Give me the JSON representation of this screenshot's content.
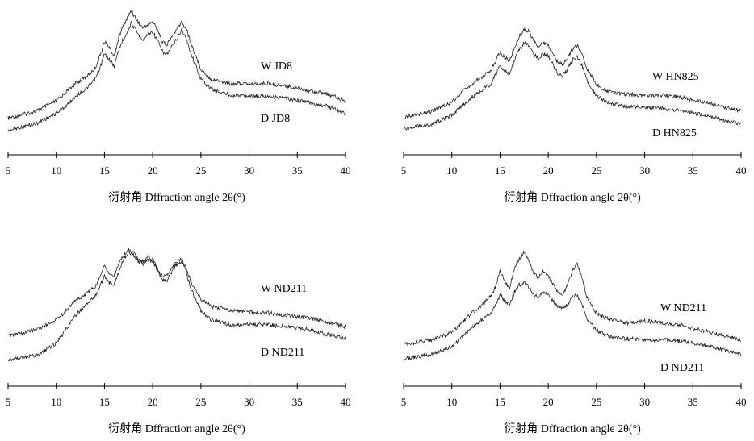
{
  "chart_data": [
    {
      "type": "line",
      "panel": "top-left",
      "xlabel": "衍射角 Dffraction angle 2θ(°)",
      "ylabel": "",
      "xlim": [
        5,
        40
      ],
      "x_ticks": [
        "5",
        "10",
        "15",
        "20",
        "25",
        "30",
        "35",
        "40"
      ],
      "grid": false,
      "series": [
        {
          "name": "W JD8",
          "x": [
            5,
            8,
            10,
            11,
            12,
            13,
            14,
            14.5,
            15,
            15.5,
            16,
            16.5,
            17,
            17.5,
            17.8,
            18,
            18.5,
            19,
            19.5,
            20,
            20.5,
            21,
            21.5,
            22,
            22.5,
            23,
            23.5,
            24,
            25,
            26,
            27,
            28,
            30,
            32,
            34,
            36,
            38,
            40
          ],
          "y": [
            0.12,
            0.18,
            0.26,
            0.33,
            0.4,
            0.45,
            0.52,
            0.62,
            0.74,
            0.7,
            0.62,
            0.78,
            0.88,
            0.95,
            1.0,
            0.96,
            0.9,
            0.85,
            0.88,
            0.9,
            0.84,
            0.74,
            0.72,
            0.78,
            0.84,
            0.9,
            0.84,
            0.72,
            0.52,
            0.44,
            0.42,
            0.4,
            0.4,
            0.4,
            0.38,
            0.35,
            0.32,
            0.26
          ]
        },
        {
          "name": "D JD8",
          "x": [
            5,
            8,
            10,
            11,
            12,
            13,
            14,
            14.5,
            15,
            15.5,
            16,
            16.5,
            17,
            17.5,
            17.8,
            18,
            18.5,
            19,
            19.5,
            20,
            20.5,
            21,
            21.5,
            22,
            22.5,
            23,
            23.5,
            24,
            25,
            26,
            27,
            28,
            30,
            32,
            34,
            36,
            38,
            40
          ],
          "y": [
            0.02,
            0.08,
            0.16,
            0.22,
            0.3,
            0.35,
            0.43,
            0.52,
            0.64,
            0.6,
            0.54,
            0.68,
            0.77,
            0.84,
            0.9,
            0.86,
            0.8,
            0.76,
            0.8,
            0.82,
            0.75,
            0.66,
            0.64,
            0.7,
            0.76,
            0.84,
            0.76,
            0.64,
            0.44,
            0.36,
            0.33,
            0.31,
            0.3,
            0.3,
            0.28,
            0.25,
            0.22,
            0.16
          ]
        }
      ]
    },
    {
      "type": "line",
      "panel": "top-right",
      "xlabel": "衍射角 Dffraction angle 2θ(°)",
      "ylabel": "",
      "xlim": [
        5,
        40
      ],
      "x_ticks": [
        "5",
        "10",
        "15",
        "20",
        "25",
        "30",
        "35",
        "40"
      ],
      "grid": false,
      "series": [
        {
          "name": "W HN825",
          "x": [
            5,
            8,
            10,
            11,
            12,
            13,
            14,
            14.5,
            15,
            15.5,
            16,
            16.5,
            17,
            17.5,
            18,
            18.5,
            19,
            19.5,
            20,
            20.5,
            21,
            21.5,
            22,
            22.5,
            23,
            23.5,
            24,
            25,
            26,
            27,
            28,
            30,
            32,
            34,
            36,
            38,
            40
          ],
          "y": [
            0.18,
            0.24,
            0.32,
            0.4,
            0.48,
            0.54,
            0.6,
            0.68,
            0.78,
            0.72,
            0.7,
            0.82,
            0.92,
            0.98,
            0.96,
            0.88,
            0.82,
            0.86,
            0.84,
            0.76,
            0.68,
            0.66,
            0.72,
            0.8,
            0.84,
            0.76,
            0.62,
            0.48,
            0.42,
            0.4,
            0.39,
            0.38,
            0.38,
            0.36,
            0.32,
            0.28,
            0.24
          ]
        },
        {
          "name": "D HN825",
          "x": [
            5,
            8,
            10,
            11,
            12,
            13,
            14,
            14.5,
            15,
            15.5,
            16,
            16.5,
            17,
            17.5,
            18,
            18.5,
            19,
            19.5,
            20,
            20.5,
            21,
            21.5,
            22,
            22.5,
            23,
            23.5,
            24,
            25,
            26,
            27,
            28,
            30,
            32,
            34,
            36,
            38,
            40
          ],
          "y": [
            0.08,
            0.12,
            0.2,
            0.28,
            0.36,
            0.42,
            0.48,
            0.56,
            0.66,
            0.6,
            0.58,
            0.7,
            0.8,
            0.86,
            0.84,
            0.76,
            0.72,
            0.76,
            0.74,
            0.66,
            0.58,
            0.56,
            0.62,
            0.7,
            0.74,
            0.66,
            0.52,
            0.38,
            0.32,
            0.3,
            0.28,
            0.27,
            0.26,
            0.24,
            0.2,
            0.16,
            0.12
          ]
        }
      ]
    },
    {
      "type": "line",
      "panel": "bottom-left",
      "xlabel": "衍射角 Dffraction angle 2θ(°)",
      "ylabel": "",
      "xlim": [
        5,
        40
      ],
      "x_ticks": [
        "5",
        "10",
        "15",
        "20",
        "25",
        "30",
        "35",
        "40"
      ],
      "grid": false,
      "series": [
        {
          "name": "W ND211",
          "x": [
            5,
            8,
            10,
            11,
            12,
            13,
            14,
            14.5,
            15,
            15.5,
            16,
            16.5,
            17,
            17.5,
            18,
            18.5,
            19,
            19.5,
            20,
            20.5,
            21,
            21.5,
            22,
            22.5,
            23,
            23.5,
            24,
            25,
            26,
            27,
            28,
            30,
            32,
            34,
            36,
            38,
            40
          ],
          "y": [
            0.24,
            0.3,
            0.38,
            0.46,
            0.54,
            0.6,
            0.66,
            0.74,
            0.84,
            0.78,
            0.76,
            0.86,
            0.94,
            0.98,
            0.96,
            0.9,
            0.88,
            0.92,
            0.9,
            0.82,
            0.76,
            0.76,
            0.82,
            0.88,
            0.9,
            0.82,
            0.7,
            0.56,
            0.5,
            0.48,
            0.46,
            0.45,
            0.44,
            0.42,
            0.4,
            0.36,
            0.32
          ]
        },
        {
          "name": "D ND211",
          "x": [
            5,
            8,
            10,
            11,
            12,
            13,
            14,
            14.5,
            15,
            15.5,
            16,
            16.5,
            17,
            17.5,
            18,
            18.5,
            19,
            19.5,
            20,
            20.5,
            21,
            21.5,
            22,
            22.5,
            23,
            23.5,
            24,
            25,
            26,
            27,
            28,
            30,
            32,
            34,
            36,
            38,
            40
          ],
          "y": [
            0.04,
            0.08,
            0.18,
            0.3,
            0.42,
            0.5,
            0.58,
            0.66,
            0.76,
            0.7,
            0.68,
            0.8,
            0.9,
            0.96,
            0.94,
            0.88,
            0.86,
            0.9,
            0.88,
            0.8,
            0.72,
            0.72,
            0.8,
            0.86,
            0.88,
            0.78,
            0.64,
            0.46,
            0.38,
            0.36,
            0.34,
            0.34,
            0.34,
            0.32,
            0.3,
            0.26,
            0.22
          ]
        }
      ]
    },
    {
      "type": "line",
      "panel": "bottom-right",
      "xlabel": "衍射角 Dffraction angle 2θ(°)",
      "ylabel": "",
      "xlim": [
        5,
        40
      ],
      "x_ticks": [
        "5",
        "10",
        "15",
        "20",
        "25",
        "30",
        "35",
        "40"
      ],
      "grid": false,
      "series": [
        {
          "name": "W ND211",
          "x": [
            5,
            8,
            10,
            11,
            12,
            13,
            14,
            14.5,
            15,
            15.5,
            16,
            16.5,
            17,
            17.5,
            18,
            18.5,
            19,
            19.5,
            20,
            20.5,
            21,
            21.5,
            22,
            22.5,
            23,
            23.5,
            24,
            25,
            26,
            27,
            28,
            30,
            32,
            34,
            36,
            38,
            40
          ],
          "y": [
            0.22,
            0.26,
            0.32,
            0.4,
            0.48,
            0.54,
            0.62,
            0.7,
            0.84,
            0.74,
            0.7,
            0.86,
            0.94,
            1.0,
            0.92,
            0.82,
            0.78,
            0.84,
            0.8,
            0.72,
            0.66,
            0.64,
            0.72,
            0.84,
            0.9,
            0.78,
            0.62,
            0.48,
            0.44,
            0.42,
            0.4,
            0.42,
            0.4,
            0.38,
            0.34,
            0.3,
            0.26
          ]
        },
        {
          "name": "D ND211",
          "x": [
            5,
            8,
            10,
            11,
            12,
            13,
            14,
            14.5,
            15,
            15.5,
            16,
            16.5,
            17,
            17.5,
            18,
            18.5,
            19,
            19.5,
            20,
            20.5,
            21,
            21.5,
            22,
            22.5,
            23,
            23.5,
            24,
            25,
            26,
            27,
            28,
            30,
            32,
            34,
            36,
            38,
            40
          ],
          "y": [
            0.1,
            0.14,
            0.2,
            0.28,
            0.36,
            0.42,
            0.48,
            0.54,
            0.64,
            0.58,
            0.56,
            0.66,
            0.72,
            0.74,
            0.7,
            0.64,
            0.62,
            0.66,
            0.64,
            0.58,
            0.54,
            0.52,
            0.56,
            0.62,
            0.64,
            0.56,
            0.44,
            0.34,
            0.3,
            0.28,
            0.27,
            0.26,
            0.26,
            0.25,
            0.22,
            0.18,
            0.14
          ]
        }
      ]
    }
  ]
}
